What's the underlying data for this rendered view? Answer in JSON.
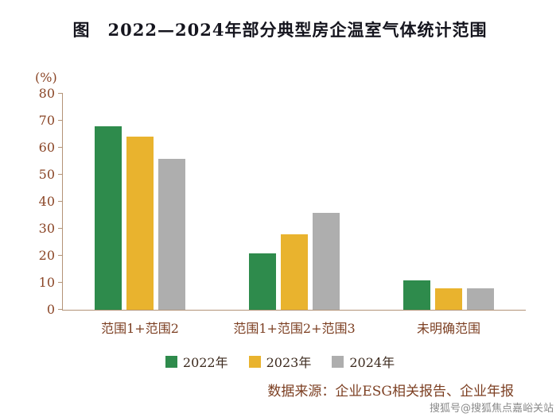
{
  "title": "图　2022—2024年部分典型房企温室气体统计范围",
  "chart_data": {
    "type": "bar",
    "title": "2022—2024年部分典型房企温室气体统计范围",
    "ylabel": "(%)",
    "xlabel": "",
    "ylim": [
      0,
      80
    ],
    "yticks": [
      0,
      10,
      20,
      30,
      40,
      50,
      60,
      70,
      80
    ],
    "grid": false,
    "legend_position": "bottom",
    "categories": [
      "范围1+范围2",
      "范围1+范围2+范围3",
      "未明确范围"
    ],
    "series": [
      {
        "name": "2022年",
        "color": "#2e8b4c",
        "values": [
          68,
          21,
          11
        ]
      },
      {
        "name": "2023年",
        "color": "#e9b32e",
        "values": [
          64,
          28,
          8
        ]
      },
      {
        "name": "2024年",
        "color": "#aeaeae",
        "values": [
          56,
          36,
          8
        ]
      }
    ]
  },
  "footer": {
    "source": "数据来源：企业ESG相关报告、企业年报"
  },
  "watermark": {
    "text": "搜狐号@搜狐焦点嘉峪关站"
  }
}
